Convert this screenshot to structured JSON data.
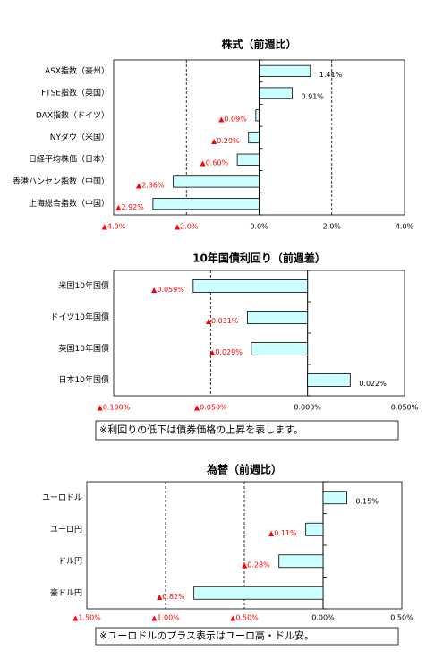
{
  "chart_data": [
    {
      "type": "bar",
      "orientation": "horizontal",
      "title": "株式（前週比）",
      "categories": [
        "ASX指数（豪州）",
        "FTSE指数（英国）",
        "DAX指数（ドイツ）",
        "NYダウ（米国）",
        "日経平均株価（日本）",
        "香港ハンセン指数（中国）",
        "上海総合指数（中国）"
      ],
      "values": [
        1.41,
        0.91,
        -0.09,
        -0.29,
        -0.6,
        -2.36,
        -2.92
      ],
      "value_labels": [
        "1.41%",
        "0.91%",
        "▲0.09%",
        "▲0.29%",
        "▲0.60%",
        "▲2.36%",
        "▲2.92%"
      ],
      "color": "#ccffff",
      "xlim": [
        -4,
        4
      ],
      "xticks": [
        {
          "value": -4,
          "label": "▲4.0%"
        },
        {
          "value": -2,
          "label": "▲2.0%"
        },
        {
          "value": 0,
          "label": "0.0%"
        },
        {
          "value": 2,
          "label": "2.0%"
        },
        {
          "value": 4,
          "label": "4.0%"
        }
      ],
      "grid": true
    },
    {
      "type": "bar",
      "orientation": "horizontal",
      "title": "10年国債利回り（前週差）",
      "categories": [
        "米国10年国債",
        "ドイツ10年国債",
        "英国10年国債",
        "日本10年国債"
      ],
      "values": [
        -0.059,
        -0.031,
        -0.029,
        0.022
      ],
      "value_labels": [
        "▲0.059%",
        "▲0.031%",
        "▲0.029%",
        "0.022%"
      ],
      "color": "#ccffff",
      "xlim": [
        -0.1,
        0.05
      ],
      "xticks": [
        {
          "value": -0.1,
          "label": "▲0.100%"
        },
        {
          "value": -0.05,
          "label": "▲0.050%"
        },
        {
          "value": 0,
          "label": "0.000%"
        },
        {
          "value": 0.05,
          "label": "0.050%"
        }
      ],
      "grid": true,
      "note": "※利回りの低下は債券価格の上昇を表します。"
    },
    {
      "type": "bar",
      "orientation": "horizontal",
      "title": "為替（前週比）",
      "categories": [
        "ユーロドル",
        "ユーロ円",
        "ドル円",
        "豪ドル円"
      ],
      "values": [
        0.15,
        -0.11,
        -0.28,
        -0.82
      ],
      "value_labels": [
        "0.15%",
        "▲0.11%",
        "▲0.28%",
        "▲0.82%"
      ],
      "color": "#ccffff",
      "xlim": [
        -1.5,
        0.5
      ],
      "xticks": [
        {
          "value": -1.5,
          "label": "▲1.50%"
        },
        {
          "value": -1,
          "label": "▲1.00%"
        },
        {
          "value": -0.5,
          "label": "▲0.50%"
        },
        {
          "value": 0,
          "label": "0.00%"
        },
        {
          "value": 0.5,
          "label": "0.50%"
        }
      ],
      "grid": true,
      "note": "※ユーロドルのプラス表示はユーロ高・ドル安。"
    }
  ]
}
